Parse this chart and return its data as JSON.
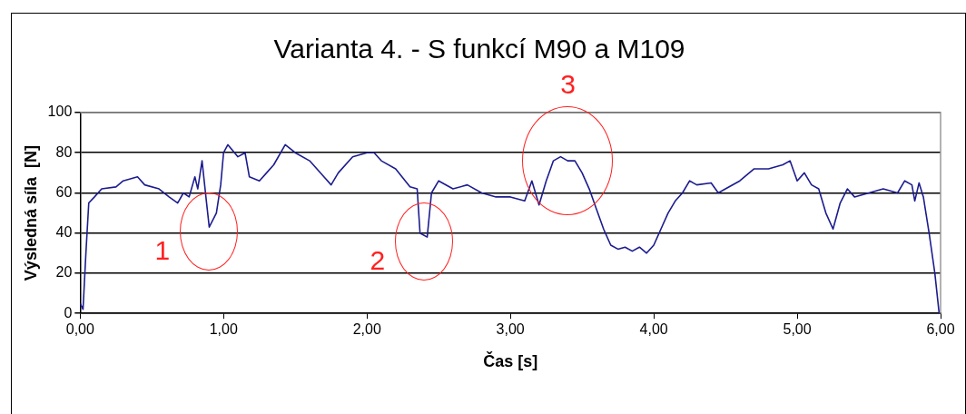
{
  "chart_data": {
    "type": "line",
    "title": "Varianta 4. - S funkcí M90 a M109",
    "xlabel": "Čas [s]",
    "ylabel": "Výsledná síla  [N]",
    "x": [
      0,
      0.02,
      0.04,
      0.06,
      0.1,
      0.15,
      0.25,
      0.3,
      0.4,
      0.45,
      0.55,
      0.62,
      0.68,
      0.72,
      0.76,
      0.8,
      0.82,
      0.85,
      0.88,
      0.9,
      0.95,
      0.98,
      1.0,
      1.03,
      1.1,
      1.15,
      1.18,
      1.25,
      1.3,
      1.35,
      1.43,
      1.5,
      1.6,
      1.7,
      1.75,
      1.8,
      1.9,
      2.0,
      2.05,
      2.1,
      2.2,
      2.3,
      2.35,
      2.37,
      2.42,
      2.45,
      2.5,
      2.6,
      2.7,
      2.8,
      2.9,
      3.0,
      3.1,
      3.15,
      3.2,
      3.25,
      3.28,
      3.3,
      3.35,
      3.4,
      3.45,
      3.5,
      3.55,
      3.6,
      3.65,
      3.7,
      3.75,
      3.8,
      3.85,
      3.9,
      3.95,
      4.0,
      4.05,
      4.1,
      4.15,
      4.2,
      4.25,
      4.3,
      4.4,
      4.45,
      4.5,
      4.6,
      4.7,
      4.8,
      4.9,
      4.95,
      5.0,
      5.05,
      5.1,
      5.15,
      5.2,
      5.25,
      5.3,
      5.35,
      5.4,
      5.5,
      5.6,
      5.7,
      5.75,
      5.8,
      5.82,
      5.85,
      5.88,
      5.92,
      5.96,
      5.99
    ],
    "series": [
      {
        "color": "#1c1c8f",
        "values": [
          5,
          2,
          30,
          55,
          58,
          62,
          63,
          66,
          68,
          64,
          62,
          58,
          55,
          60,
          58,
          68,
          62,
          76,
          56,
          43,
          50,
          64,
          80,
          84,
          78,
          80,
          68,
          66,
          70,
          74,
          84,
          80,
          76,
          68,
          64,
          70,
          78,
          80,
          80,
          76,
          72,
          63,
          62,
          40,
          38,
          60,
          66,
          62,
          64,
          60,
          58,
          58,
          56,
          66,
          54,
          66,
          72,
          76,
          78,
          76,
          76,
          70,
          62,
          52,
          42,
          34,
          32,
          33,
          31,
          33,
          30,
          34,
          42,
          50,
          56,
          60,
          66,
          64,
          65,
          60,
          62,
          66,
          72,
          72,
          74,
          76,
          66,
          70,
          64,
          62,
          50,
          42,
          55,
          62,
          58,
          60,
          62,
          60,
          66,
          64,
          56,
          65,
          58,
          40,
          20,
          0
        ]
      }
    ],
    "xlim": [
      0,
      6
    ],
    "xticks": [
      {
        "value": 0,
        "label": "0,00"
      },
      {
        "value": 1,
        "label": "1,00"
      },
      {
        "value": 2,
        "label": "2,00"
      },
      {
        "value": 3,
        "label": "3,00"
      },
      {
        "value": 4,
        "label": "4,00"
      },
      {
        "value": 5,
        "label": "5,00"
      },
      {
        "value": 6,
        "label": "6,00"
      }
    ],
    "ylim": [
      0,
      100
    ],
    "yticks": [
      0,
      20,
      40,
      60,
      80,
      100
    ],
    "grid": "y",
    "legend": false,
    "marker": "none",
    "line_style": "solid",
    "annotations": [
      {
        "text": "1",
        "x": 0.9,
        "y": 43
      },
      {
        "text": "2",
        "x": 2.4,
        "y": 38
      },
      {
        "text": "3",
        "x": 3.4,
        "y": 76
      }
    ]
  }
}
